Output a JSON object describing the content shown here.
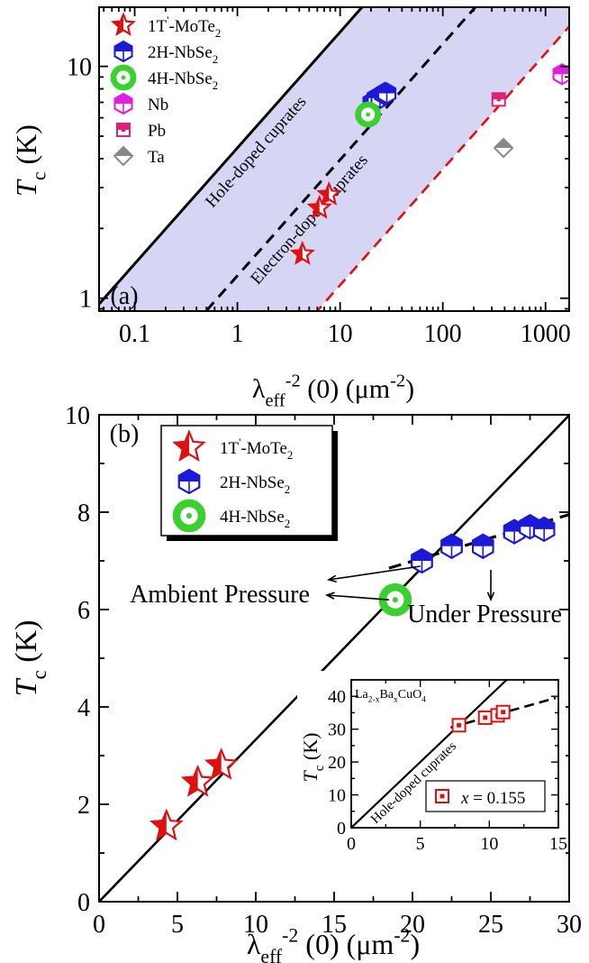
{
  "chart_data": [
    {
      "panel": "(a)",
      "type": "scatter",
      "xscale": "log",
      "yscale": "log",
      "xlim": [
        0.045,
        1700
      ],
      "ylim": [
        0.88,
        18
      ],
      "xticks": [
        "0.1",
        "1",
        "10",
        "100",
        "1000"
      ],
      "yticks": [
        "1",
        "10"
      ],
      "xlabel": {
        "main": "λ",
        "sub": "eff",
        "sup": "-2",
        "rest": " (0) (μm",
        "rest_sup": "-2",
        "close": ")"
      },
      "ylabel": {
        "main": "T",
        "sub": "c",
        "rest": " (K)"
      },
      "series": [
        {
          "name": "1T'-MoTe2",
          "label": [
            "1T",
            "'",
            "-MoTe",
            "2"
          ],
          "color": "#e01010",
          "marker": "star",
          "points": [
            [
              4.3,
              1.55
            ],
            [
              6.3,
              2.45
            ],
            [
              7.8,
              2.8
            ]
          ]
        },
        {
          "name": "2H-NbSe2",
          "label": [
            "2H-NbSe",
            "2"
          ],
          "color": "#1a1ad8",
          "marker": "hexagon",
          "points": [
            [
              20.5,
              7.0
            ],
            [
              22.5,
              7.3
            ],
            [
              24.5,
              7.3
            ],
            [
              26.5,
              7.6
            ],
            [
              27.5,
              7.7
            ],
            [
              28.5,
              7.65
            ]
          ]
        },
        {
          "name": "4H-NbSe2",
          "label": [
            "4H-NbSe",
            "2"
          ],
          "color": "#3ad030",
          "marker": "ring",
          "points": [
            [
              18.7,
              6.2
            ]
          ]
        },
        {
          "name": "Nb",
          "label": [
            "Nb"
          ],
          "color": "#e020e0",
          "marker": "hexagon",
          "points": [
            [
              1450,
              9.25
            ]
          ]
        },
        {
          "name": "Pb",
          "label": [
            "Pb"
          ],
          "color": "#e0207a",
          "marker": "square",
          "points": [
            [
              350,
              7.2
            ]
          ]
        },
        {
          "name": "Ta",
          "label": [
            "Ta"
          ],
          "color": "#888888",
          "marker": "diamond",
          "points": [
            [
              390,
              4.45
            ]
          ]
        }
      ],
      "lines": [
        {
          "label": "Hole-doped cuprates",
          "style": "solid",
          "color": "#000000",
          "slope": 4.45
        },
        {
          "label": "Electron-doped cuprates",
          "style": "dashed",
          "color": "#000000",
          "slope": 1.25
        },
        {
          "label": "",
          "style": "dashed",
          "color": "#e01010",
          "slope": 0.36
        }
      ],
      "band_between_lines": [
        "Hole-doped cuprates",
        "red-dashed"
      ],
      "band_color": "#c8c8f0"
    },
    {
      "panel": "(b)",
      "type": "scatter",
      "xlim": [
        0,
        30
      ],
      "ylim": [
        0,
        10
      ],
      "xticks": [
        0,
        5,
        10,
        15,
        20,
        25,
        30
      ],
      "yticks": [
        0,
        2,
        4,
        6,
        8,
        10
      ],
      "xlabel": {
        "main": "λ",
        "sub": "eff",
        "sup": "-2",
        "rest": " (0) (μm",
        "rest_sup": "-2",
        "close": ")"
      },
      "ylabel": {
        "main": "T",
        "sub": "c",
        "rest": " (K)"
      },
      "series": [
        {
          "name": "1T'-MoTe2",
          "label": [
            "1T",
            "'",
            "-MoTe",
            "2"
          ],
          "color": "#e01010",
          "marker": "star",
          "points": [
            [
              4.3,
              1.55
            ],
            [
              6.3,
              2.45
            ],
            [
              7.8,
              2.8
            ]
          ]
        },
        {
          "name": "2H-NbSe2",
          "label": [
            "2H-NbSe",
            "2"
          ],
          "color": "#1a1ad8",
          "marker": "hexagon",
          "points": [
            [
              20.6,
              7.0
            ],
            [
              22.5,
              7.3
            ],
            [
              24.5,
              7.3
            ],
            [
              26.5,
              7.6
            ],
            [
              27.5,
              7.7
            ],
            [
              28.4,
              7.65
            ]
          ]
        },
        {
          "name": "4H-NbSe2",
          "label": [
            "4H-NbSe",
            "2"
          ],
          "color": "#3ad030",
          "marker": "ring",
          "points": [
            [
              18.9,
              6.2
            ]
          ]
        }
      ],
      "lines": [
        {
          "style": "solid",
          "color": "#000000",
          "slope": 0.333
        },
        {
          "style": "dashed",
          "color": "#000000",
          "x0": 18.5,
          "y0": 6.85,
          "x1": 30,
          "y1": 7.95
        }
      ],
      "annotations": [
        {
          "text": "Ambient Pressure"
        },
        {
          "text": "Under Pressure"
        }
      ],
      "inset": {
        "type": "scatter",
        "xlim": [
          0,
          15
        ],
        "ylim": [
          0,
          45
        ],
        "xticks": [
          0,
          5,
          10,
          15
        ],
        "yticks": [
          0,
          10,
          20,
          30,
          40
        ],
        "ylabel": {
          "main": "T",
          "sub": "c",
          "rest": " (K)"
        },
        "title": {
          "parts": [
            "La",
            "2-x",
            "Ba",
            "x",
            "CuO",
            "4"
          ]
        },
        "line_label": "Hole-doped cuprates",
        "legend": {
          "var": "x",
          "text": " = 0.155"
        },
        "series": [
          {
            "name": "x = 0.155",
            "color": "#e01010",
            "marker": "square",
            "points": [
              [
                7.8,
                31.2
              ],
              [
                9.7,
                33.5
              ],
              [
                10.6,
                34.2
              ],
              [
                11.0,
                35.2
              ]
            ]
          }
        ],
        "lines": [
          {
            "style": "solid",
            "color": "#000000",
            "slope": 4.0
          },
          {
            "style": "dashed",
            "color": "#000000",
            "x0": 7.2,
            "y0": 30.5,
            "x1": 14.8,
            "y1": 39.5
          }
        ]
      }
    }
  ]
}
